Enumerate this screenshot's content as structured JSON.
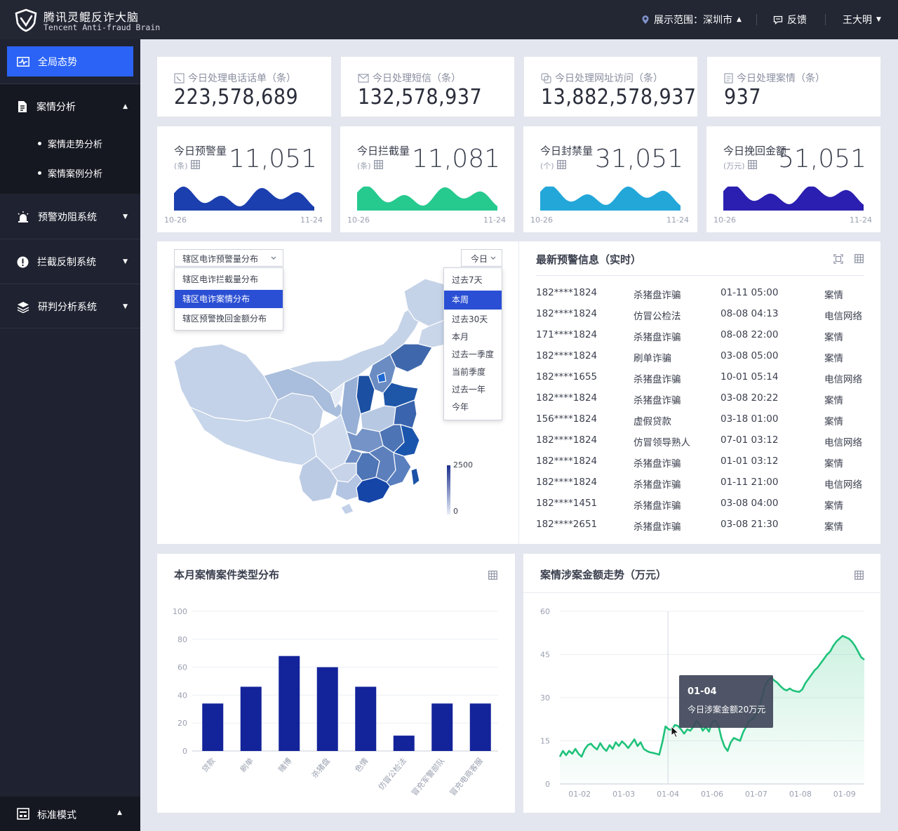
{
  "header": {
    "brand_cn": "腾讯灵鲲反诈大脑",
    "brand_en": "Tencent Anti-fraud Brain",
    "scope": "展示范围：深圳市",
    "feedback": "反馈",
    "user": "王大明"
  },
  "sidebar": {
    "items": [
      {
        "label": "全局态势",
        "icon": "pulse-icon"
      },
      {
        "label": "案情分析",
        "icon": "document-icon"
      },
      {
        "label": "预警劝阻系统",
        "icon": "alarm-icon"
      },
      {
        "label": "拦截反制系统",
        "icon": "warning-icon"
      },
      {
        "label": "研判分析系统",
        "icon": "layers-icon"
      }
    ],
    "sub_items": [
      "案情走势分析",
      "案情案例分析"
    ],
    "mode": "标准模式"
  },
  "kpis": [
    {
      "label": "今日处理电话话单（条）",
      "value": "223,578,689",
      "icon": "phone-log-icon"
    },
    {
      "label": "今日处理短信（条）",
      "value": "132,578,937",
      "icon": "mail-icon"
    },
    {
      "label": "今日处理网址访问（条）",
      "value": "13,882,578,937",
      "icon": "link-icon"
    },
    {
      "label": "今日处理案情（条）",
      "value": "937",
      "icon": "file-icon"
    }
  ],
  "metrics": [
    {
      "label": "今日预警量",
      "unit": "(条)",
      "value": "11,051",
      "date_start": "10-26",
      "date_end": "11-24",
      "color": "#1b3fae"
    },
    {
      "label": "今日拦截量",
      "unit": "(条)",
      "value": "11,081",
      "date_start": "10-26",
      "date_end": "11-24",
      "color": "#26c98e"
    },
    {
      "label": "今日封禁量",
      "unit": "(个)",
      "value": "31,051",
      "date_start": "10-26",
      "date_end": "11-24",
      "color": "#23a7d9"
    },
    {
      "label": "今日挽回金额",
      "unit": "(万元)",
      "value": "51,051",
      "date_start": "10-26",
      "date_end": "11-24",
      "color": "#2a1fb0"
    }
  ],
  "map_panel": {
    "selector": "辖区电诈预警量分布",
    "options": [
      "辖区电诈拦截量分布",
      "辖区电诈案情分布",
      "辖区预警挽回金额分布"
    ],
    "selected_option": 1,
    "period": "今日",
    "period_options": [
      "过去7天",
      "本周",
      "过去30天",
      "本月",
      "过去一季度",
      "当前季度",
      "过去一年",
      "今年"
    ],
    "selected_period": 1,
    "legend_max": "2500",
    "legend_min": "0"
  },
  "feed": {
    "title": "最新预警信息（实时）",
    "rows": [
      [
        "182****1824",
        "杀猪盘诈骗",
        "01-11  05:00",
        "案情"
      ],
      [
        "182****1824",
        "仿冒公检法",
        "08-08  04:13",
        "电信网络"
      ],
      [
        "171****1824",
        "杀猪盘诈骗",
        "08-08  22:00",
        "案情"
      ],
      [
        "182****1824",
        "刷单诈骗",
        "03-08  05:00",
        "案情"
      ],
      [
        "182****1655",
        "杀猪盘诈骗",
        "10-01  05:14",
        "电信网络"
      ],
      [
        "182****1824",
        "杀猪盘诈骗",
        "03-08  20:22",
        "案情"
      ],
      [
        "156****1824",
        "虚假贷款",
        "03-18  01:00",
        "案情"
      ],
      [
        "182****1824",
        "仿冒领导熟人",
        "07-01  03:12",
        "电信网络"
      ],
      [
        "182****1824",
        "杀猪盘诈骗",
        "01-01  03:12",
        "案情"
      ],
      [
        "182****1824",
        "杀猪盘诈骗",
        "01-11  21:00",
        "电信网络"
      ],
      [
        "182****1451",
        "杀猪盘诈骗",
        "03-08  04:00",
        "案情"
      ],
      [
        "182****2651",
        "杀猪盘诈骗",
        "03-08  21:30",
        "案情"
      ]
    ]
  },
  "bar_panel": {
    "title": "本月案情案件类型分布"
  },
  "line_panel": {
    "title": "案情涉案金额走势（万元）",
    "tooltip_date": "01-04",
    "tooltip_text": "今日涉案金额20万元"
  },
  "chart_data": [
    {
      "type": "bar",
      "title": "本月案情案件类型分布",
      "categories": [
        "贷款",
        "刷单",
        "赌博",
        "杀猪盘",
        "色情",
        "仿冒公检法",
        "冒充军警部队",
        "冒充电商客服"
      ],
      "values": [
        34,
        46,
        68,
        60,
        46,
        11,
        34,
        34
      ],
      "ylim": [
        0,
        100
      ],
      "yticks": [
        0,
        20,
        40,
        60,
        80,
        100
      ],
      "color": "#13239a"
    },
    {
      "type": "area",
      "title": "案情涉案金额走势（万元）",
      "xticks": [
        "01-02",
        "01-03",
        "01-04",
        "01-06",
        "01-07",
        "01-08",
        "01-09"
      ],
      "ylim": [
        0,
        60
      ],
      "yticks": [
        0,
        15,
        30,
        45,
        60
      ],
      "values": [
        9.5,
        11.5,
        10,
        11.5,
        10.5,
        12.2,
        10.5,
        9.5,
        12,
        13.5,
        14,
        12.8,
        12,
        14.2,
        12.5,
        11.5,
        13.5,
        12.2,
        14.5,
        13.2,
        14.8,
        13.8,
        12.5,
        14,
        15.5,
        13.2,
        14.5,
        12.2,
        11.5,
        11,
        10.8,
        10.5,
        10.2,
        14.5,
        20,
        19,
        18.8,
        20.5,
        20.2,
        19,
        17.5,
        19,
        18.5,
        20,
        22,
        20.8,
        18.5,
        19.8,
        18.2,
        21.5,
        22,
        20.5,
        16,
        13,
        11.5,
        14.5,
        16,
        15.5,
        15,
        18,
        20,
        22,
        22.5,
        24,
        26,
        30,
        34,
        36,
        37,
        36,
        35.2,
        34,
        33,
        32.5,
        33.2,
        32.5,
        32.2,
        32,
        32.8,
        35,
        36.5,
        38,
        39.5,
        40.5,
        42,
        43.5,
        45,
        46,
        48,
        49.5,
        50.5,
        51.5,
        51,
        50.5,
        49.5,
        48,
        46,
        44,
        43.2
      ],
      "color": "#1fc27a"
    }
  ]
}
